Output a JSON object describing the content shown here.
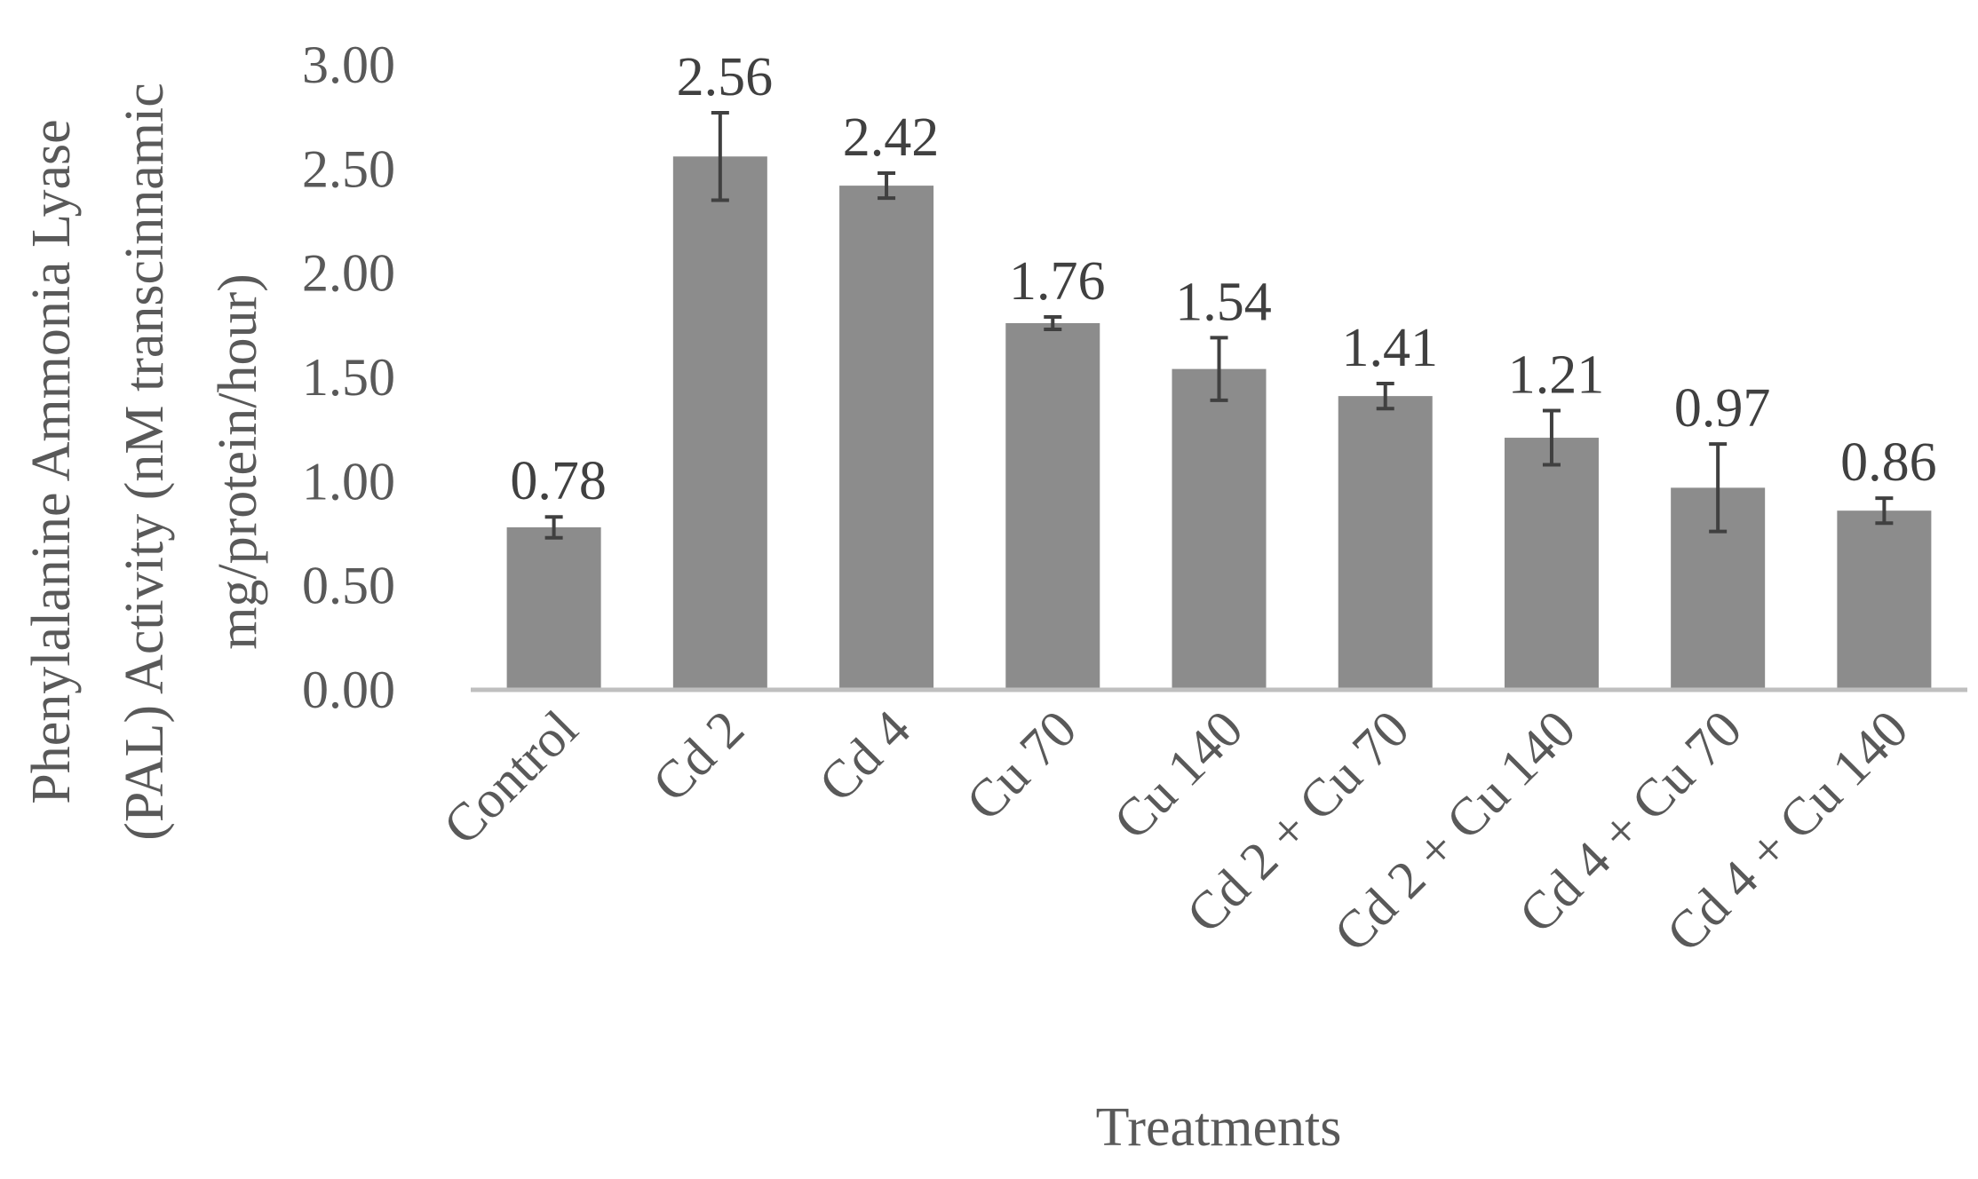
{
  "chart_data": {
    "type": "bar",
    "title": "",
    "xlabel": "Treatments",
    "ylabel_lines": [
      "Phenylalanine Ammonia Lyase",
      "(PAL) Activity (nM transcinnamic",
      "mg/protein/hour)"
    ],
    "ylim": [
      0,
      3.0
    ],
    "yticks": [
      "0.00",
      "0.50",
      "1.00",
      "1.50",
      "2.00",
      "2.50",
      "3.00"
    ],
    "grid": false,
    "legend": "none",
    "categories": [
      "Control",
      "Cd 2",
      "Cd 4",
      "Cu 70",
      "Cu 140",
      "Cd 2 + Cu 70",
      "Cd 2 + Cu 140",
      "Cd 4 + Cu 70",
      "Cd 4 + Cu 140"
    ],
    "values": [
      0.78,
      2.56,
      2.42,
      1.76,
      1.54,
      1.41,
      1.21,
      0.97,
      0.86
    ],
    "data_labels": [
      "0.78",
      "2.56",
      "2.42",
      "1.76",
      "1.54",
      "1.41",
      "1.21",
      "0.97",
      "0.86"
    ],
    "error": [
      0.05,
      0.21,
      0.06,
      0.03,
      0.15,
      0.06,
      0.13,
      0.21,
      0.06
    ],
    "bar_color": "#8c8c8c",
    "error_color": "#404040"
  }
}
